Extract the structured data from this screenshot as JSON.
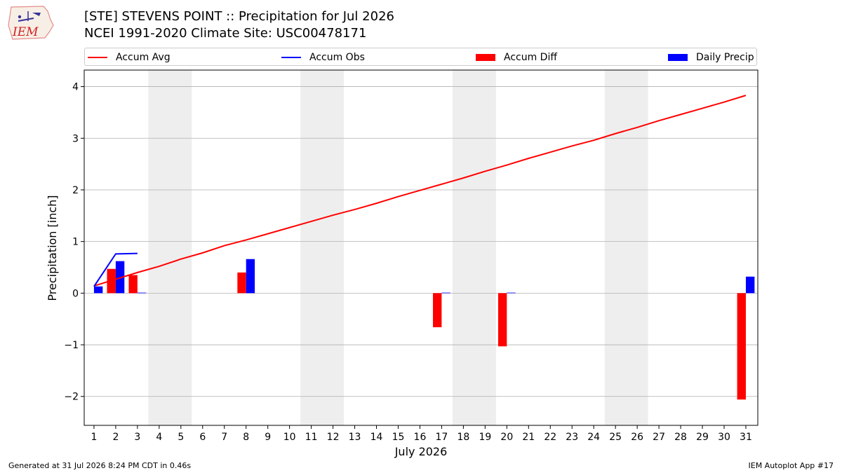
{
  "header": {
    "logo_text": "IEM",
    "title_line1": "[STE] STEVENS POINT :: Precipitation for Jul 2026",
    "title_line2": "NCEI 1991-2020 Climate Site: USC00478171"
  },
  "legend": {
    "items": [
      {
        "label": "Accum Avg",
        "kind": "line",
        "color": "#ff0000"
      },
      {
        "label": "Accum Obs",
        "kind": "line",
        "color": "#0000ff"
      },
      {
        "label": "Accum Diff",
        "kind": "bar",
        "color": "#ff0000"
      },
      {
        "label": "Daily Precip",
        "kind": "bar",
        "color": "#0000ff"
      }
    ]
  },
  "chart_data": {
    "type": "bar",
    "xlabel": "July 2026",
    "ylabel": "Precipitation [inch]",
    "x": [
      1,
      2,
      3,
      4,
      5,
      6,
      7,
      8,
      9,
      10,
      11,
      12,
      13,
      14,
      15,
      16,
      17,
      18,
      19,
      20,
      21,
      22,
      23,
      24,
      25,
      26,
      27,
      28,
      29,
      30,
      31
    ],
    "xlim": [
      0.55,
      31.55
    ],
    "ylim": [
      -2.56,
      4.32
    ],
    "yticks": [
      -2,
      -1,
      0,
      1,
      2,
      3,
      4
    ],
    "ytick_labels": [
      "−2",
      "−1",
      "0",
      "1",
      "2",
      "3",
      "4"
    ],
    "grid": "y",
    "weekend_shading": [
      [
        3.5,
        5.5
      ],
      [
        10.5,
        12.5
      ],
      [
        17.5,
        19.5
      ],
      [
        24.5,
        26.5
      ]
    ],
    "series": [
      {
        "name": "Accum Avg",
        "kind": "line",
        "color": "#ff0000",
        "x": [
          1,
          2,
          3,
          4,
          5,
          6,
          7,
          8,
          9,
          10,
          11,
          12,
          13,
          14,
          15,
          16,
          17,
          18,
          19,
          20,
          21,
          22,
          23,
          24,
          25,
          26,
          27,
          28,
          29,
          30,
          31
        ],
        "values": [
          0.14,
          0.27,
          0.4,
          0.52,
          0.66,
          0.78,
          0.92,
          1.03,
          1.15,
          1.27,
          1.39,
          1.51,
          1.62,
          1.74,
          1.87,
          1.99,
          2.11,
          2.23,
          2.36,
          2.48,
          2.61,
          2.73,
          2.85,
          2.96,
          3.09,
          3.21,
          3.34,
          3.46,
          3.58,
          3.7,
          3.83
        ]
      },
      {
        "name": "Accum Obs",
        "kind": "line",
        "color": "#0000ff",
        "x": [
          1,
          2,
          3
        ],
        "values": [
          0.13,
          0.76,
          0.77
        ]
      },
      {
        "name": "Accum Diff",
        "kind": "bar",
        "color": "#ff0000",
        "x": [
          2,
          3,
          8,
          17,
          20,
          31
        ],
        "values": [
          0.47,
          0.35,
          0.4,
          -0.66,
          -1.03,
          -2.06
        ]
      },
      {
        "name": "Daily Precip",
        "kind": "bar",
        "color": "#0000ff",
        "x": [
          1,
          2,
          3,
          8,
          17,
          20,
          31
        ],
        "values": [
          0.13,
          0.62,
          0.01,
          0.66,
          0.01,
          0.01,
          0.32
        ]
      }
    ]
  },
  "footer": {
    "left": "Generated at 31 Jul 2026 8:24 PM CDT in 0.46s",
    "right": "IEM Autoplot App #17"
  }
}
